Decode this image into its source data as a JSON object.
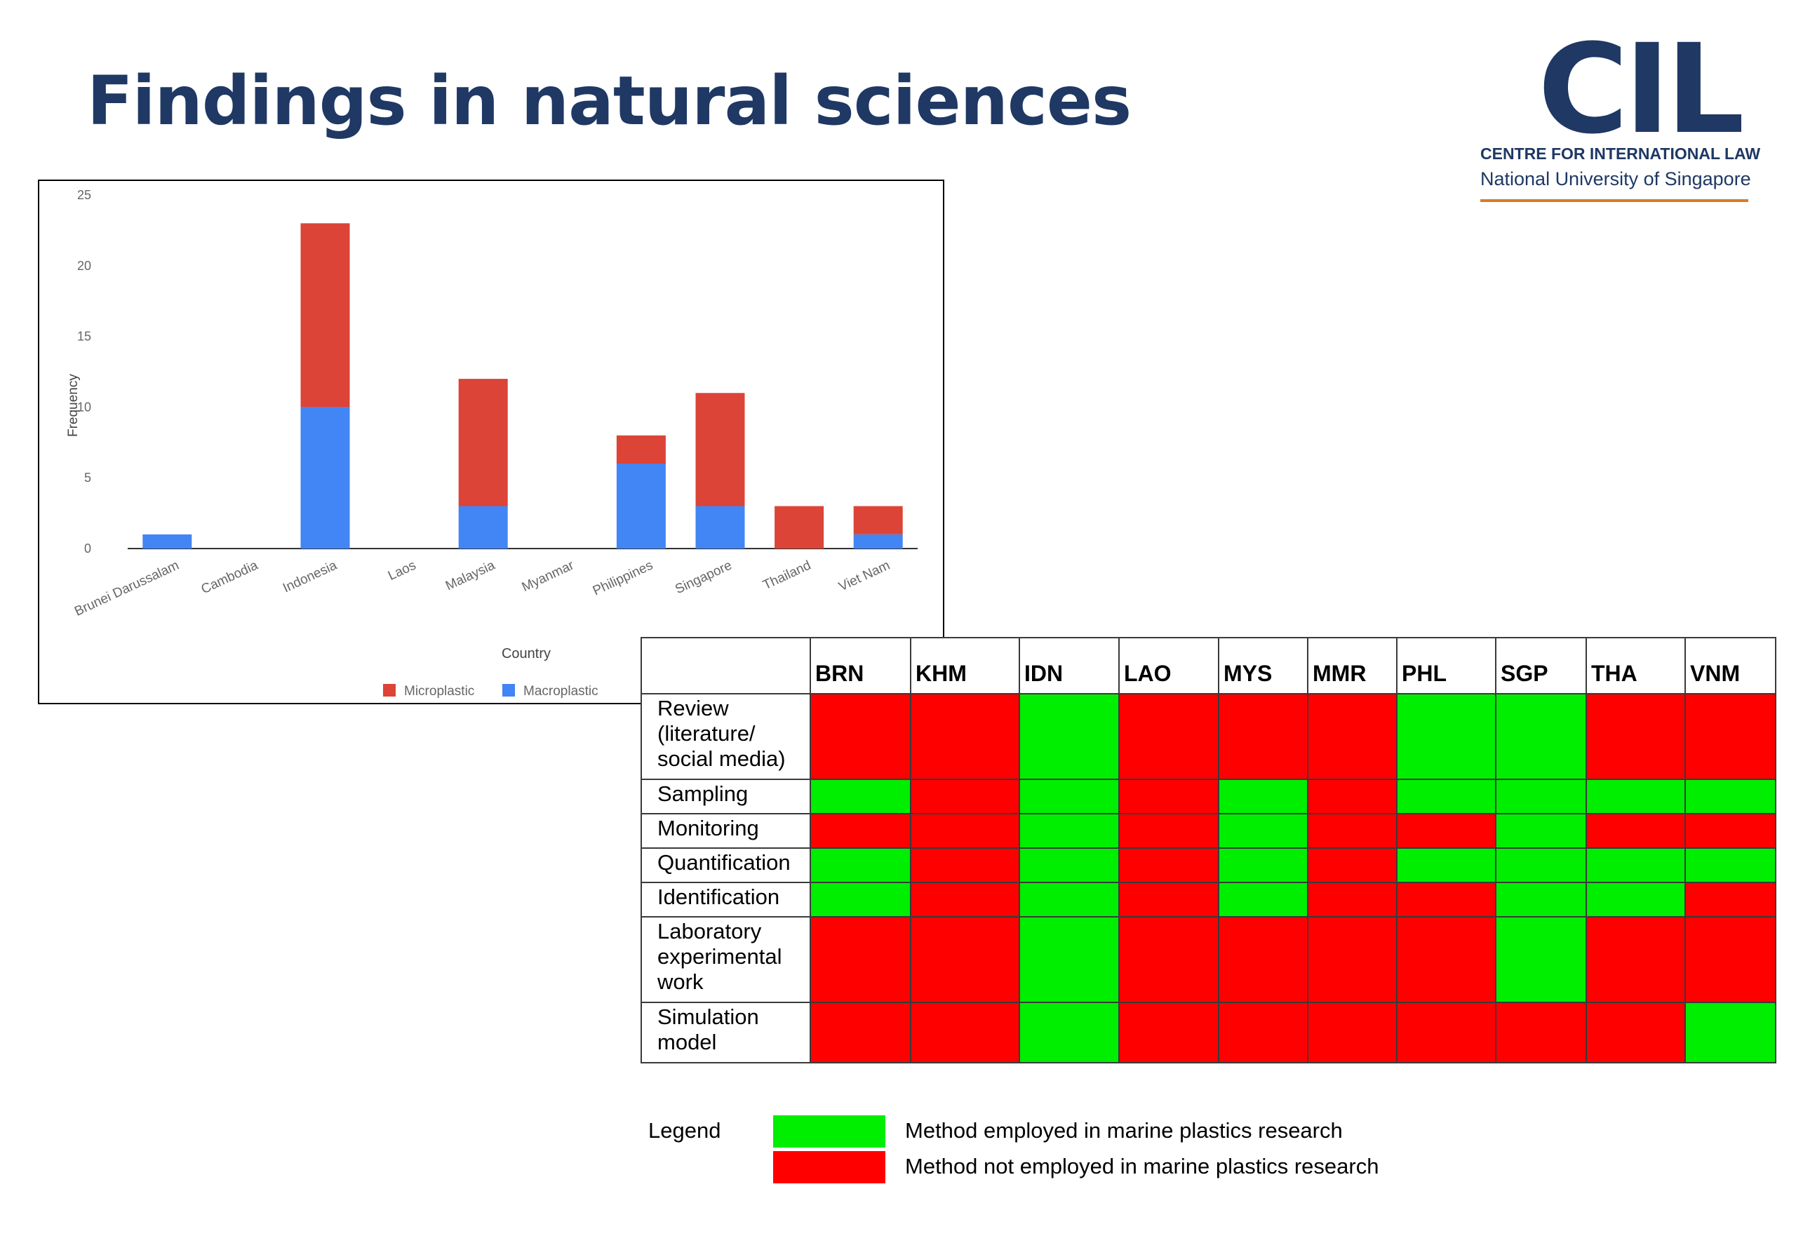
{
  "slide": {
    "title": "Findings in natural sciences",
    "logo": {
      "mark": "CIL",
      "line1": "CENTRE FOR INTERNATIONAL LAW",
      "line2": "National University of Singapore",
      "rule_color": "#d97a2b"
    }
  },
  "chart_data": {
    "type": "bar",
    "stacked": true,
    "categories": [
      "Brunei Darussalam",
      "Cambodia",
      "Indonesia",
      "Laos",
      "Malaysia",
      "Myanmar",
      "Philippines",
      "Singapore",
      "Thailand",
      "Viet Nam"
    ],
    "series": [
      {
        "name": "Macroplastic",
        "color": "#4285f4",
        "values": [
          1,
          0,
          10,
          0,
          3,
          0,
          6,
          3,
          0,
          1
        ]
      },
      {
        "name": "Microplastic",
        "color": "#db4437",
        "values": [
          0,
          0,
          13,
          0,
          9,
          0,
          2,
          8,
          3,
          2
        ]
      }
    ],
    "legend_order": [
      "Microplastic",
      "Macroplastic"
    ],
    "xlabel": "Country",
    "ylabel": "Frequency",
    "ylim": [
      0,
      25
    ],
    "yticks": [
      0,
      5,
      10,
      15,
      20,
      25
    ],
    "legend_position": "bottom-right",
    "grid": false
  },
  "matrix": {
    "columns": [
      "BRN",
      "KHM",
      "IDN",
      "LAO",
      "MYS",
      "MMR",
      "PHL",
      "SGP",
      "THA",
      "VNM"
    ],
    "rows": [
      {
        "label": "Review (literature/ social media)",
        "lines": [
          "Review",
          "(literature/",
          "social media)"
        ],
        "cells": [
          "r",
          "r",
          "g",
          "r",
          "r",
          "r",
          "g",
          "g",
          "r",
          "r"
        ]
      },
      {
        "label": "Sampling",
        "lines": [
          "Sampling"
        ],
        "cells": [
          "g",
          "r",
          "g",
          "r",
          "g",
          "r",
          "g",
          "g",
          "g",
          "g"
        ]
      },
      {
        "label": "Monitoring",
        "lines": [
          "Monitoring"
        ],
        "cells": [
          "r",
          "r",
          "g",
          "r",
          "g",
          "r",
          "r",
          "g",
          "r",
          "r"
        ]
      },
      {
        "label": "Quantification",
        "lines": [
          "Quantification"
        ],
        "cells": [
          "g",
          "r",
          "g",
          "r",
          "g",
          "r",
          "g",
          "g",
          "g",
          "g"
        ]
      },
      {
        "label": "Identification",
        "lines": [
          "Identification"
        ],
        "cells": [
          "g",
          "r",
          "g",
          "r",
          "g",
          "r",
          "r",
          "g",
          "g",
          "r"
        ]
      },
      {
        "label": "Laboratory experimental work",
        "lines": [
          "Laboratory",
          "experimental",
          "work"
        ],
        "cells": [
          "r",
          "r",
          "g",
          "r",
          "r",
          "r",
          "r",
          "g",
          "r",
          "r"
        ]
      },
      {
        "label": "Simulation model",
        "lines": [
          "Simulation",
          "model"
        ],
        "cells": [
          "r",
          "r",
          "g",
          "r",
          "r",
          "r",
          "r",
          "r",
          "r",
          "g"
        ]
      }
    ],
    "colors": {
      "g": "#00ee00",
      "r": "#ff0000"
    }
  },
  "legend": {
    "label": "Legend",
    "items": [
      {
        "color": "#00ee00",
        "text": "Method employed in marine plastics research"
      },
      {
        "color": "#ff0000",
        "text": "Method not employed in marine plastics research"
      }
    ]
  }
}
